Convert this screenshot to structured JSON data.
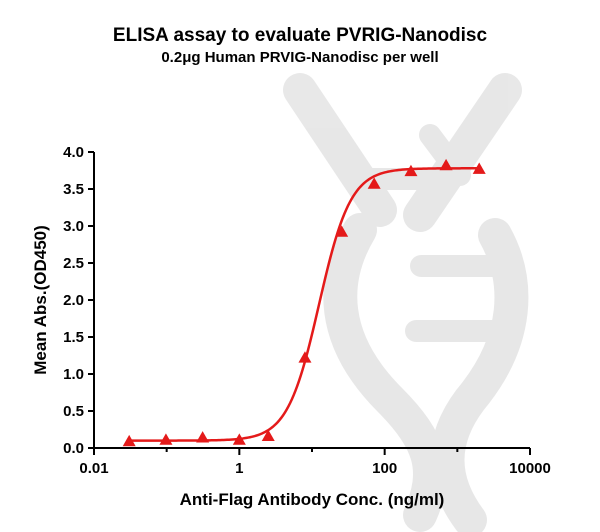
{
  "chart_data": {
    "type": "scatter",
    "title": "ELISA assay to evaluate PVRIG-Nanodisc",
    "subtitle": "0.2μg Human PRVIG-Nanodisc per well",
    "xlabel": "Anti-Flag Antibody Conc. (ng/ml)",
    "ylabel": "Mean Abs.(OD450)",
    "x_scale": "log10",
    "xlim": [
      0.01,
      10000
    ],
    "ylim": [
      0,
      4.0
    ],
    "x_ticks": [
      {
        "value": 0.01,
        "label": "0.01"
      },
      {
        "value": 1,
        "label": "1"
      },
      {
        "value": 100,
        "label": "100"
      },
      {
        "value": 10000,
        "label": "10000"
      }
    ],
    "y_ticks": [
      {
        "value": 0.0,
        "label": "0.0"
      },
      {
        "value": 0.5,
        "label": "0.5"
      },
      {
        "value": 1.0,
        "label": "1.0"
      },
      {
        "value": 1.5,
        "label": "1.5"
      },
      {
        "value": 2.0,
        "label": "2.0"
      },
      {
        "value": 2.5,
        "label": "2.5"
      },
      {
        "value": 3.0,
        "label": "3.0"
      },
      {
        "value": 3.5,
        "label": "3.5"
      },
      {
        "value": 4.0,
        "label": "4.0"
      }
    ],
    "grid": false,
    "series": [
      {
        "marker": "triangle",
        "color": "#e41a1a",
        "points": [
          {
            "x": 0.0305,
            "y": 0.09
          },
          {
            "x": 0.0977,
            "y": 0.11
          },
          {
            "x": 0.3125,
            "y": 0.14
          },
          {
            "x": 1.0,
            "y": 0.11
          },
          {
            "x": 2.5,
            "y": 0.16
          },
          {
            "x": 8.0,
            "y": 1.22
          },
          {
            "x": 25.6,
            "y": 2.92
          },
          {
            "x": 71.7,
            "y": 3.57
          },
          {
            "x": 230.0,
            "y": 3.74
          },
          {
            "x": 700.0,
            "y": 3.82
          },
          {
            "x": 2000.0,
            "y": 3.77
          }
        ]
      }
    ],
    "fit_curve": {
      "model": "4PL",
      "bottom": 0.1,
      "top": 3.78,
      "ec50": 12.5,
      "hill": 2.0,
      "color": "#e41a1a"
    },
    "watermark": "dna-helix"
  }
}
